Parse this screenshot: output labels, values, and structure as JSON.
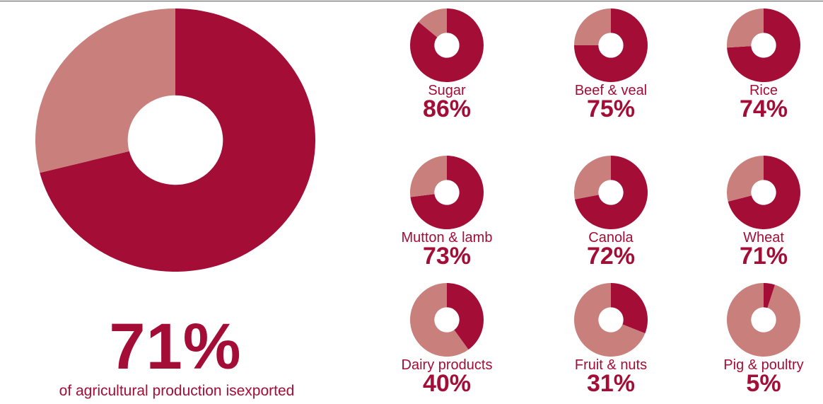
{
  "colors": {
    "exported": "#a30d36",
    "not_exported": "#c97f7b",
    "text": "#a30d36"
  },
  "headline": {
    "value": "71%",
    "caption": "of agricultural production isexported"
  },
  "chart_data": [
    {
      "type": "pie",
      "variant": "donut",
      "title": "",
      "slices": [
        {
          "value": 71,
          "color": "#a30d36"
        },
        {
          "value": 29,
          "color": "#c97f7b"
        }
      ]
    },
    {
      "type": "pie",
      "variant": "donut",
      "title": "Sugar",
      "value_label": "86%",
      "slices": [
        {
          "value": 86,
          "color": "#a30d36"
        },
        {
          "value": 14,
          "color": "#c97f7b"
        }
      ]
    },
    {
      "type": "pie",
      "variant": "donut",
      "title": "Beef & veal",
      "value_label": "75%",
      "slices": [
        {
          "value": 75,
          "color": "#a30d36"
        },
        {
          "value": 25,
          "color": "#c97f7b"
        }
      ]
    },
    {
      "type": "pie",
      "variant": "donut",
      "title": "Rice",
      "value_label": "74%",
      "slices": [
        {
          "value": 74,
          "color": "#a30d36"
        },
        {
          "value": 26,
          "color": "#c97f7b"
        }
      ]
    },
    {
      "type": "pie",
      "variant": "donut",
      "title": "Mutton & lamb",
      "value_label": "73%",
      "slices": [
        {
          "value": 73,
          "color": "#a30d36"
        },
        {
          "value": 27,
          "color": "#c97f7b"
        }
      ]
    },
    {
      "type": "pie",
      "variant": "donut",
      "title": "Canola",
      "value_label": "72%",
      "slices": [
        {
          "value": 72,
          "color": "#a30d36"
        },
        {
          "value": 28,
          "color": "#c97f7b"
        }
      ]
    },
    {
      "type": "pie",
      "variant": "donut",
      "title": "Wheat",
      "value_label": "71%",
      "slices": [
        {
          "value": 71,
          "color": "#a30d36"
        },
        {
          "value": 29,
          "color": "#c97f7b"
        }
      ]
    },
    {
      "type": "pie",
      "variant": "donut",
      "title": "Dairy products",
      "value_label": "40%",
      "slices": [
        {
          "value": 40,
          "color": "#a30d36"
        },
        {
          "value": 60,
          "color": "#c97f7b"
        }
      ]
    },
    {
      "type": "pie",
      "variant": "donut",
      "title": "Fruit & nuts",
      "value_label": "31%",
      "slices": [
        {
          "value": 31,
          "color": "#a30d36"
        },
        {
          "value": 69,
          "color": "#c97f7b"
        }
      ]
    },
    {
      "type": "pie",
      "variant": "donut",
      "title": "Pig & poultry",
      "value_label": "5%",
      "slices": [
        {
          "value": 5,
          "color": "#a30d36"
        },
        {
          "value": 95,
          "color": "#c97f7b"
        }
      ]
    }
  ]
}
